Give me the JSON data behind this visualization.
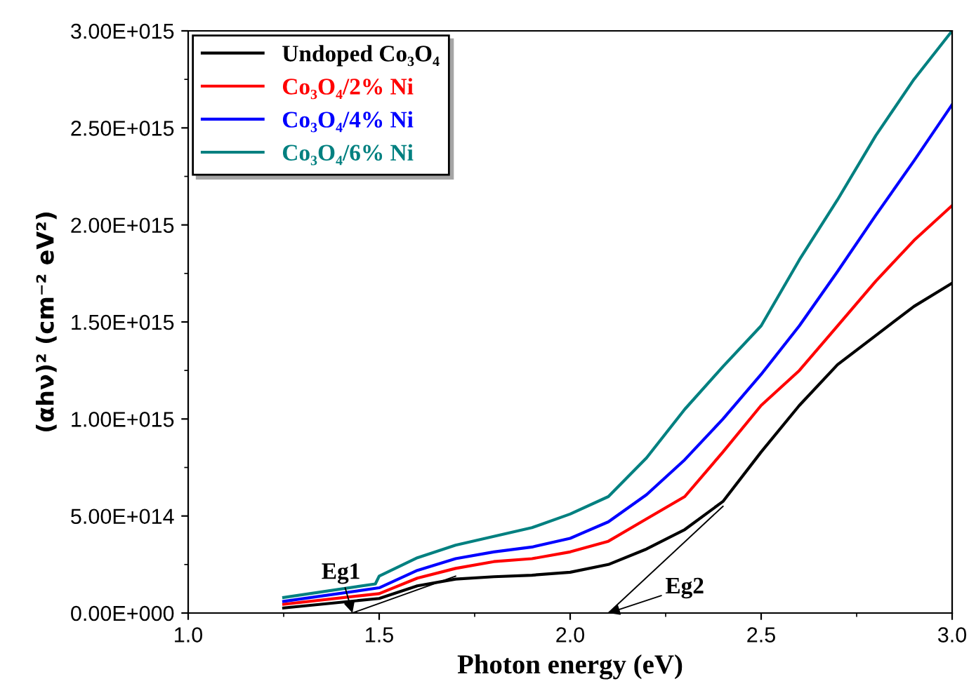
{
  "chart_data": {
    "type": "line",
    "xlabel": "Photon energy (eV)",
    "ylabel": "(αhν)² (cm⁻² eV²)",
    "xlim": [
      1.0,
      3.0
    ],
    "ylim": [
      0,
      3000000000000000.0
    ],
    "xticks": [
      {
        "value": 1.0,
        "label": "1.0"
      },
      {
        "value": 1.5,
        "label": "1.5"
      },
      {
        "value": 2.0,
        "label": "2.0"
      },
      {
        "value": 2.5,
        "label": "2.5"
      },
      {
        "value": 3.0,
        "label": "3.0"
      }
    ],
    "yticks": [
      {
        "value": 0,
        "label": "0.00E+000"
      },
      {
        "value": 500000000000000.0,
        "label": "5.00E+014"
      },
      {
        "value": 1000000000000000.0,
        "label": "1.00E+015"
      },
      {
        "value": 1500000000000000.0,
        "label": "1.50E+015"
      },
      {
        "value": 2000000000000000.0,
        "label": "2.00E+015"
      },
      {
        "value": 2500000000000000.0,
        "label": "2.50E+015"
      },
      {
        "value": 3000000000000000.0,
        "label": "3.00E+015"
      }
    ],
    "legend": "top left",
    "grid": false,
    "marker": "none",
    "line_style": "solid",
    "series": [
      {
        "name": "Undoped Co₃O₄",
        "color": "#000000",
        "x": [
          1.25,
          1.5,
          1.6,
          1.7,
          1.8,
          1.9,
          2.0,
          2.1,
          2.2,
          2.3,
          2.4,
          2.5,
          2.6,
          2.7,
          2.8,
          2.9,
          3.0
        ],
        "values": [
          26000000000000.0,
          75000000000000.0,
          140000000000000.0,
          175000000000000.0,
          187000000000000.0,
          195000000000000.0,
          210000000000000.0,
          250000000000000.0,
          330000000000000.0,
          430000000000000.0,
          575000000000000.0,
          830000000000000.0,
          1070000000000000.0,
          1280000000000000.0,
          1430000000000000.0,
          1580000000000000.0,
          1700000000000000.0
        ]
      },
      {
        "name": "Co₃O₄/2% Ni",
        "color": "#ff0000",
        "x": [
          1.25,
          1.5,
          1.6,
          1.7,
          1.8,
          1.9,
          2.0,
          2.1,
          2.2,
          2.3,
          2.4,
          2.5,
          2.6,
          2.7,
          2.8,
          2.9,
          3.0
        ],
        "values": [
          45000000000000.0,
          100000000000000.0,
          180000000000000.0,
          230000000000000.0,
          265000000000000.0,
          280000000000000.0,
          315000000000000.0,
          370000000000000.0,
          485000000000000.0,
          600000000000000.0,
          830000000000000.0,
          1070000000000000.0,
          1250000000000000.0,
          1480000000000000.0,
          1710000000000000.0,
          1920000000000000.0,
          2100000000000000.0
        ]
      },
      {
        "name": "Co₃O₄/4% Ni",
        "color": "#0000ff",
        "x": [
          1.25,
          1.5,
          1.6,
          1.7,
          1.8,
          1.9,
          2.0,
          2.1,
          2.2,
          2.3,
          2.4,
          2.5,
          2.6,
          2.7,
          2.8,
          2.9,
          3.0
        ],
        "values": [
          60000000000000.0,
          130000000000000.0,
          220000000000000.0,
          280000000000000.0,
          315000000000000.0,
          340000000000000.0,
          385000000000000.0,
          470000000000000.0,
          610000000000000.0,
          790000000000000.0,
          1000000000000000.0,
          1230000000000000.0,
          1480000000000000.0,
          1760000000000000.0,
          2050000000000000.0,
          2330000000000000.0,
          2620000000000000.0
        ]
      },
      {
        "name": "Co₃O₄/6% Ni",
        "color": "#008080",
        "x": [
          1.25,
          1.49,
          1.5,
          1.6,
          1.7,
          1.8,
          1.9,
          2.0,
          2.1,
          2.2,
          2.3,
          2.4,
          2.5,
          2.6,
          2.7,
          2.8,
          2.9,
          3.0
        ],
        "values": [
          80000000000000.0,
          150000000000000.0,
          190000000000000.0,
          285000000000000.0,
          350000000000000.0,
          395000000000000.0,
          440000000000000.0,
          510000000000000.0,
          600000000000000.0,
          800000000000000.0,
          1050000000000000.0,
          1270000000000000.0,
          1480000000000000.0,
          1820000000000000.0,
          2130000000000000.0,
          2460000000000000.0,
          2750000000000000.0,
          3000000000000000.0
        ]
      },
      {
        "type": "line",
        "color": "#000000",
        "x": [
          1.43,
          1.7
        ],
        "values": [
          0,
          190000000000000.0
        ]
      },
      {
        "type": "line",
        "color": "#000000",
        "x": [
          2.1,
          2.4
        ],
        "values": [
          0,
          550000000000000.0
        ]
      }
    ],
    "annotations": [
      {
        "text": "Eg1",
        "x": 1.43,
        "y": 0
      },
      {
        "text": "Eg2",
        "x": 2.1,
        "y": 0
      }
    ]
  }
}
